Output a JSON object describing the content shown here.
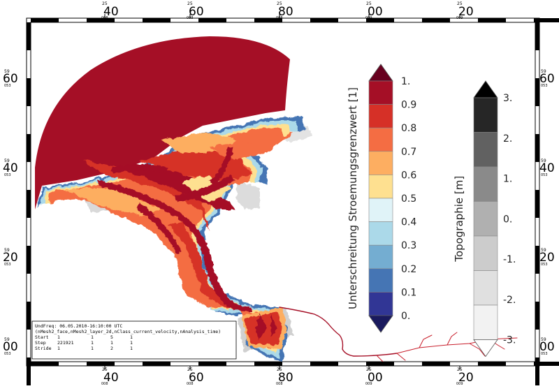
{
  "map": {
    "frame_top_labels": [
      {
        "minute": "25",
        "degree": "40",
        "sub": "008"
      },
      {
        "minute": "25",
        "degree": "60",
        "sub": "008"
      },
      {
        "minute": "25",
        "degree": "80",
        "sub": "008"
      },
      {
        "minute": "25",
        "degree": "00",
        "sub": "009"
      },
      {
        "minute": "25",
        "degree": "20",
        "sub": "009"
      }
    ],
    "frame_bottom_labels": [
      {
        "minute": "25",
        "degree": "40",
        "sub": "008"
      },
      {
        "minute": "25",
        "degree": "60",
        "sub": "008"
      },
      {
        "minute": "25",
        "degree": "80",
        "sub": "008"
      },
      {
        "minute": "25",
        "degree": "00",
        "sub": "009"
      },
      {
        "minute": "25",
        "degree": "20",
        "sub": "009"
      }
    ],
    "frame_left_labels": [
      {
        "minute": "59",
        "degree": "60",
        "sub": "053"
      },
      {
        "minute": "59",
        "degree": "40",
        "sub": "053"
      },
      {
        "minute": "59",
        "degree": "20",
        "sub": "053"
      },
      {
        "minute": "59",
        "degree": "00",
        "sub": "053"
      }
    ],
    "frame_right_labels": [
      {
        "minute": "59",
        "degree": "60",
        "sub": "053"
      },
      {
        "minute": "59",
        "degree": "40",
        "sub": "053"
      },
      {
        "minute": "59",
        "degree": "20",
        "sub": "053"
      },
      {
        "minute": "59",
        "degree": "00",
        "sub": "053"
      }
    ]
  },
  "colorbar_flow": {
    "title": "Unterschreitung Stroemungsgrenzwert [1]",
    "labels": [
      "1.",
      "0.9",
      "0.8",
      "0.7",
      "0.6",
      "0.5",
      "0.4",
      "0.3",
      "0.2",
      "0.1",
      "0."
    ],
    "colors": [
      "#a50f26",
      "#d63027",
      "#f46d43",
      "#fdae61",
      "#fee090",
      "#e0f3f8",
      "#abd9e9",
      "#74add1",
      "#4575b4",
      "#313695"
    ],
    "over_color": "#67001f",
    "under_color": "#1a1a5e"
  },
  "colorbar_topo": {
    "title": "Topographie [m]",
    "labels": [
      "3.",
      "2.",
      "1.",
      "0.",
      "-1.",
      "-2.",
      "-3."
    ],
    "colors": [
      "#262626",
      "#616161",
      "#8a8a8a",
      "#b0b0b0",
      "#cccccc",
      "#e0e0e0",
      "#f2f2f2"
    ],
    "over_color": "#000000",
    "under_color": "#ffffff"
  },
  "info_box": {
    "line1": "UndFreq: 06.05.2010-16:10:00 UTC",
    "line2": "(nMesh2_face,nMesh2_layer_2d,nClass_current_velocity,nAnalysis_time)",
    "rows": [
      {
        "label": "Start",
        "v1": "1",
        "v2": "1",
        "v3": "5",
        "v4": "1"
      },
      {
        "label": "Step",
        "v1": "221921",
        "v2": "1",
        "v3": "1",
        "v4": "1"
      },
      {
        "label": "Stride",
        "v1": "1",
        "v2": "1",
        "v3": "2",
        "v4": "1"
      }
    ]
  }
}
